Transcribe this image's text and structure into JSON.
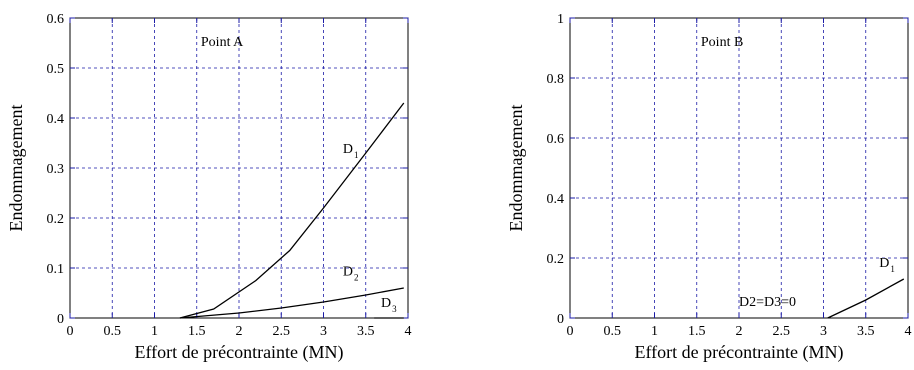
{
  "chart_data": [
    {
      "type": "line",
      "title": "Point A",
      "xlabel": "Effort de précontrainte (MN)",
      "ylabel": "Endommagement",
      "xlim": [
        0,
        4
      ],
      "ylim": [
        0,
        0.6
      ],
      "xticks": [
        0,
        0.5,
        1,
        1.5,
        2,
        2.5,
        3,
        3.5,
        4
      ],
      "xtick_labels": [
        "0",
        "0.5",
        "1",
        "1.5",
        "2",
        "2.5",
        "3",
        "3.5",
        "4"
      ],
      "yticks": [
        0,
        0.1,
        0.2,
        0.3,
        0.4,
        0.5,
        0.6
      ],
      "ytick_labels": [
        "0",
        "0.1",
        "0.2",
        "0.3",
        "0.4",
        "0.5",
        "0.6"
      ],
      "grid": true,
      "series": [
        {
          "name": "D1",
          "x": [
            1.3,
            1.7,
            2.2,
            2.6,
            3.0,
            3.5,
            3.95
          ],
          "y": [
            0,
            0.018,
            0.075,
            0.135,
            0.22,
            0.33,
            0.43
          ]
        },
        {
          "name": "D2",
          "x": [
            1.3,
            2.0,
            2.5,
            3.0,
            3.5,
            3.95
          ],
          "y": [
            0,
            0.01,
            0.02,
            0.032,
            0.046,
            0.06
          ]
        },
        {
          "name": "D3",
          "x": [
            3.6,
            3.95
          ],
          "y": [
            0,
            0
          ]
        }
      ],
      "annotations": [
        {
          "label": "D",
          "sub": "1",
          "x": 3.23,
          "y": 0.33
        },
        {
          "label": "D",
          "sub": "2",
          "x": 3.23,
          "y": 0.085
        },
        {
          "label": "D",
          "sub": "3",
          "x": 3.68,
          "y": 0.022
        }
      ]
    },
    {
      "type": "line",
      "title": "Point B",
      "xlabel": "Effort de précontrainte (MN)",
      "ylabel": "Endommagement",
      "xlim": [
        0,
        4
      ],
      "ylim": [
        0,
        1
      ],
      "xticks": [
        0,
        0.5,
        1,
        1.5,
        2,
        2.5,
        3,
        3.5,
        4
      ],
      "xtick_labels": [
        "0",
        "0.5",
        "1",
        "1.5",
        "2",
        "2.5",
        "3",
        "3.5",
        "4"
      ],
      "yticks": [
        0,
        0.2,
        0.4,
        0.6,
        0.8,
        1
      ],
      "ytick_labels": [
        "0",
        "0.2",
        "0.4",
        "0.6",
        "0.8",
        "1"
      ],
      "grid": true,
      "series": [
        {
          "name": "D1",
          "x": [
            3.05,
            3.5,
            3.95
          ],
          "y": [
            0,
            0.06,
            0.13
          ]
        }
      ],
      "annotations": [
        {
          "label": "D",
          "sub": "1",
          "x": 3.66,
          "y": 0.17
        },
        {
          "label": "D2=D3=0",
          "x": 2.0,
          "y": 0.04
        }
      ]
    }
  ]
}
